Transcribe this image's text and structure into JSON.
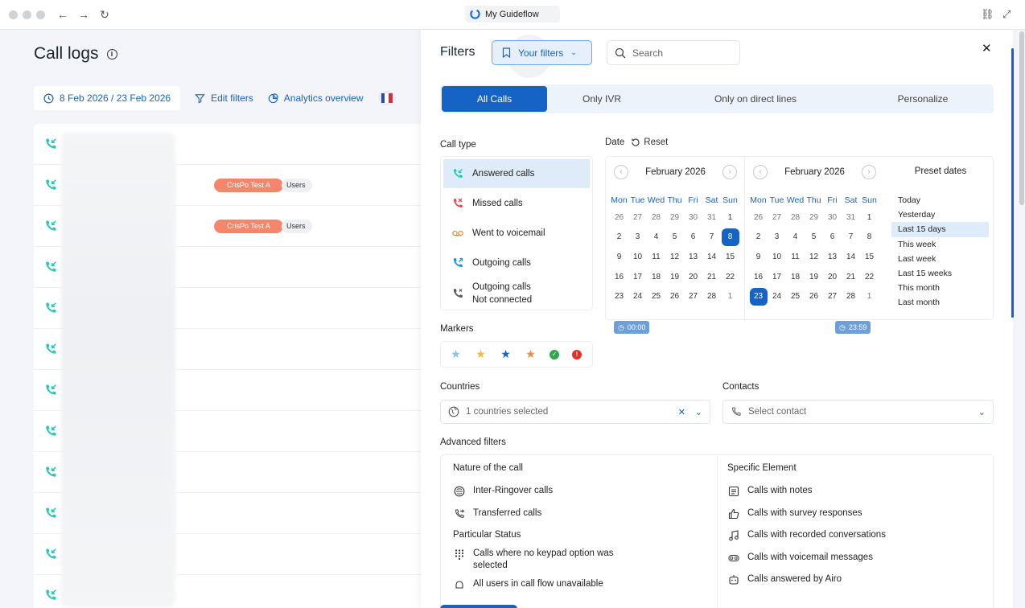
{
  "browser": {
    "tab_title": "My Guideflow"
  },
  "page": {
    "title": "Call logs",
    "date_range": "8 Feb 2026 / 23 Feb 2026",
    "edit_filters": "Edit filters",
    "analytics_overview": "Analytics overview",
    "flag_colors": [
      "#2b4ea1",
      "#ffffff",
      "#e1293a"
    ],
    "rows": [
      {
        "team": "",
        "users": ""
      },
      {
        "team": "CrisPo Test A",
        "users": "Users"
      },
      {
        "team": "CrisPo Test A",
        "users": "Users"
      },
      {
        "team": "",
        "users": ""
      },
      {
        "team": "",
        "users": ""
      },
      {
        "team": "",
        "users": ""
      },
      {
        "team": "",
        "users": ""
      },
      {
        "team": "",
        "users": ""
      },
      {
        "team": "",
        "users": ""
      },
      {
        "team": "",
        "users": ""
      },
      {
        "team": "",
        "users": ""
      },
      {
        "team": "",
        "users": ""
      }
    ]
  },
  "filters": {
    "title": "Filters",
    "your_filters": "Your filters",
    "search_placeholder": "Search",
    "tabs": [
      "All Calls",
      "Only IVR",
      "Only on direct lines",
      "Personalize"
    ],
    "call_type_label": "Call type",
    "call_types": [
      {
        "label": "Answered calls",
        "icon": "answered-call-icon",
        "color": "#2ec4b6"
      },
      {
        "label": "Missed calls",
        "icon": "missed-call-icon",
        "color": "#e5484d"
      },
      {
        "label": "Went to voicemail",
        "icon": "voicemail-icon",
        "color": "#f08a3e"
      },
      {
        "label": "Outgoing calls",
        "icon": "outgoing-call-icon",
        "color": "#1a8fe3"
      },
      {
        "label": "Outgoing calls",
        "label2": "Not connected",
        "icon": "outgoing-not-connected-icon",
        "color": "#555555"
      }
    ],
    "date_label": "Date",
    "reset_label": "Reset",
    "calendar_left": {
      "month": "February 2026",
      "selected": "8",
      "time": "00:00"
    },
    "calendar_right": {
      "month": "February 2026",
      "selected": "23",
      "time": "23:59"
    },
    "weekdays": [
      "Mon",
      "Tue",
      "Wed",
      "Thu",
      "Fri",
      "Sat",
      "Sun"
    ],
    "weeks": [
      [
        "26",
        "27",
        "28",
        "29",
        "30",
        "31",
        "1"
      ],
      [
        "2",
        "3",
        "4",
        "5",
        "6",
        "7",
        "8"
      ],
      [
        "9",
        "10",
        "11",
        "12",
        "13",
        "14",
        "15"
      ],
      [
        "16",
        "17",
        "18",
        "19",
        "20",
        "21",
        "22"
      ],
      [
        "23",
        "24",
        "25",
        "26",
        "27",
        "28",
        "1"
      ]
    ],
    "preset_title": "Preset dates",
    "presets": [
      "Today",
      "Yesterday",
      "Last 15 days",
      "This week",
      "Last week",
      "Last 15 weeks",
      "This month",
      "Last month"
    ],
    "preset_selected": "Last 15 days",
    "markers_label": "Markers",
    "markers": [
      {
        "icon": "star-light-blue-icon",
        "color": "#8fc1ec",
        "glyph": "★"
      },
      {
        "icon": "star-yellow-icon",
        "color": "#f4b740",
        "glyph": "★"
      },
      {
        "icon": "star-blue-icon",
        "color": "#1463c5",
        "glyph": "★"
      },
      {
        "icon": "star-orange-icon",
        "color": "#f08a3e",
        "glyph": "★"
      },
      {
        "icon": "check-green-icon",
        "color": "#2fa84f",
        "glyph": "✓"
      },
      {
        "icon": "alert-red-icon",
        "color": "#e5302a",
        "glyph": "!"
      }
    ],
    "countries_label": "Countries",
    "countries_value": "1 countries selected",
    "contacts_label": "Contacts",
    "contacts_placeholder": "Select contact",
    "advanced_label": "Advanced filters",
    "nature_title": "Nature of the call",
    "nature_items": [
      "Inter-Ringover calls",
      "Transferred calls"
    ],
    "status_title": "Particular Status",
    "status_items": [
      "Calls where no keypad option was",
      "selected",
      "All users in call flow unavailable"
    ],
    "specific_title": "Specific Element",
    "specific_items": [
      "Calls with notes",
      "Calls with survey responses",
      "Calls with recorded conversations",
      "Calls with voicemail messages",
      "Calls answered by Airo"
    ]
  }
}
